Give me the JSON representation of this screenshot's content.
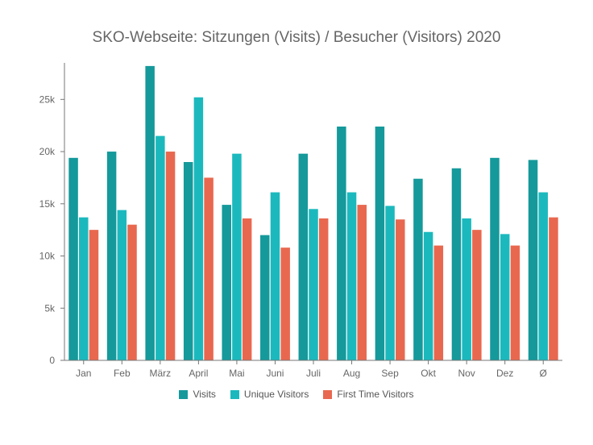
{
  "chart_data": {
    "type": "bar",
    "title": "SKO-Webseite: Sitzungen (Visits) / Besucher (Visitors) 2020",
    "xlabel": "",
    "ylabel": "",
    "ylim": [
      0,
      28500
    ],
    "yticks": [
      0,
      5000,
      10000,
      15000,
      20000,
      25000
    ],
    "ytick_labels": [
      "0",
      "5k",
      "10k",
      "15k",
      "20k",
      "25k"
    ],
    "grid": false,
    "legend_position": "bottom",
    "categories": [
      "Jan",
      "Feb",
      "März",
      "April",
      "Mai",
      "Juni",
      "Juli",
      "Aug",
      "Sep",
      "Okt",
      "Nov",
      "Dez",
      "Ø"
    ],
    "series": [
      {
        "name": "Visits",
        "color": "#15999b",
        "values": [
          19400,
          20000,
          28200,
          19000,
          14900,
          12000,
          19800,
          22400,
          22400,
          17400,
          18400,
          19400,
          19200
        ]
      },
      {
        "name": "Unique Visitors",
        "color": "#1bb9bd",
        "values": [
          13700,
          14400,
          21500,
          25200,
          19800,
          16100,
          14500,
          16100,
          14800,
          12300,
          13600,
          12100,
          16100
        ]
      },
      {
        "name": "First Time Visitors",
        "color": "#e8684f",
        "values": [
          12500,
          13000,
          20000,
          17500,
          13600,
          10800,
          13600,
          14900,
          13500,
          11000,
          12500,
          11000,
          13700
        ]
      }
    ]
  }
}
